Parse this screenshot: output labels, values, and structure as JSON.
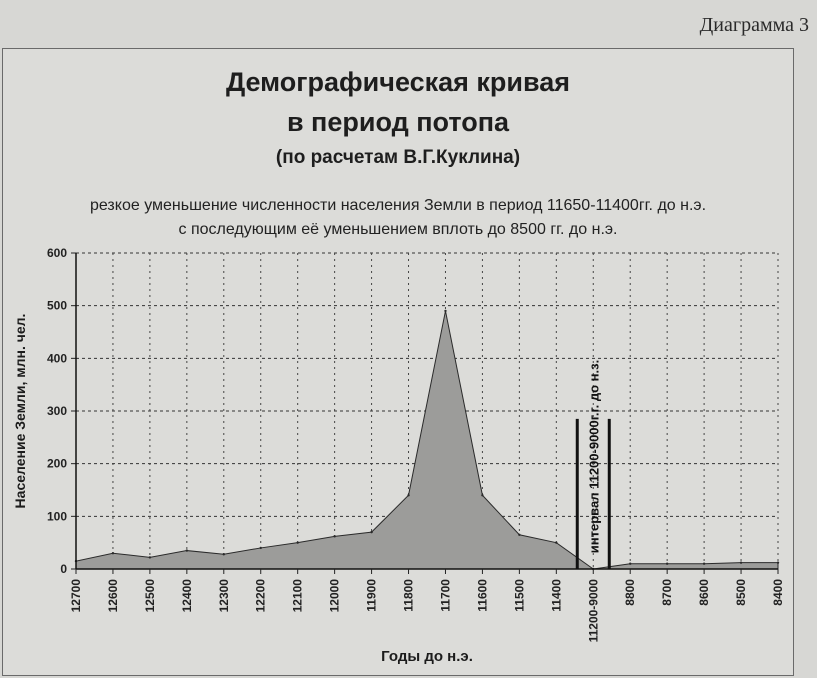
{
  "page_label": "Диаграмма 3",
  "chart_data": {
    "type": "area",
    "title": "Демографическая кривая",
    "title_line2": "в период потопа",
    "subtitle": "(по расчетам В.Г.Куклина)",
    "note_line1": "резкое уменьшение численности населения Земли в период 11650-11400гг. до н.э.",
    "note_line2": "с последующим её уменьшением вплоть до 8500 гг. до н.э.",
    "xlabel": "Годы до н.э.",
    "ylabel": "Население Земли, млн. чел.",
    "ylim": [
      0,
      600
    ],
    "yticks": [
      "0",
      "100",
      "200",
      "300",
      "400",
      "500",
      "600"
    ],
    "grid": true,
    "categories": [
      "12700",
      "12600",
      "12500",
      "12400",
      "12300",
      "12200",
      "12100",
      "12000",
      "11900",
      "11800",
      "11700",
      "11600",
      "11500",
      "11400",
      "11200-9000",
      "8800",
      "8700",
      "8600",
      "8500",
      "8400"
    ],
    "values": [
      15,
      30,
      22,
      35,
      28,
      40,
      50,
      62,
      70,
      140,
      490,
      140,
      65,
      50,
      0,
      10,
      10,
      10,
      12,
      12
    ],
    "interval_label": "интервал 11200-9000г.г. до н.з."
  }
}
